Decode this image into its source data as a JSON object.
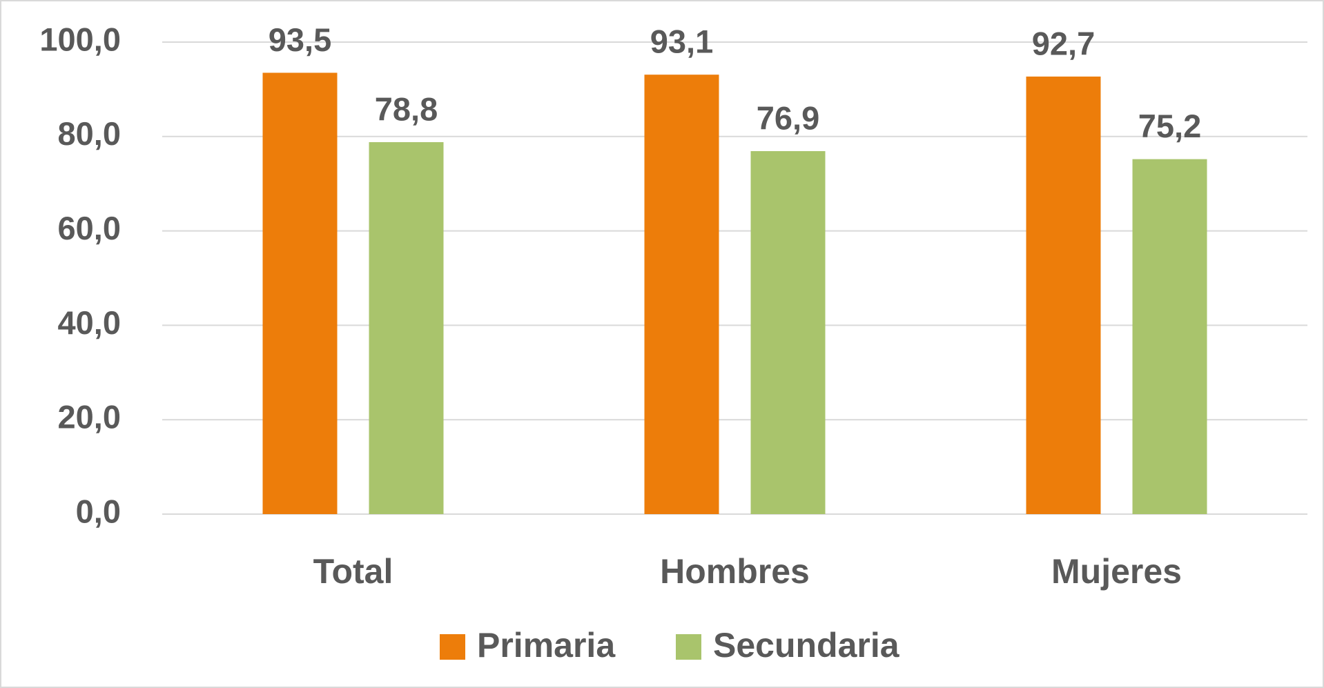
{
  "chart_data": {
    "type": "bar",
    "categories": [
      "Total",
      "Hombres",
      "Mujeres"
    ],
    "series": [
      {
        "name": "Primaria",
        "color": "#ed7d0a",
        "values": [
          93.5,
          93.1,
          92.7
        ],
        "value_labels": [
          "93,5",
          "93,1",
          "92,7"
        ]
      },
      {
        "name": "Secundaria",
        "color": "#a9c46c",
        "values": [
          78.8,
          76.9,
          75.2
        ],
        "value_labels": [
          "78,8",
          "76,9",
          "75,2"
        ]
      }
    ],
    "ylim": [
      0,
      100
    ],
    "yticks": [
      {
        "value": 0,
        "label": "0,0"
      },
      {
        "value": 20,
        "label": "20,0"
      },
      {
        "value": 40,
        "label": "40,0"
      },
      {
        "value": 60,
        "label": "60,0"
      },
      {
        "value": 80,
        "label": "80,0"
      },
      {
        "value": 100,
        "label": "100,0"
      }
    ],
    "grid": true,
    "legend": "bottom"
  }
}
